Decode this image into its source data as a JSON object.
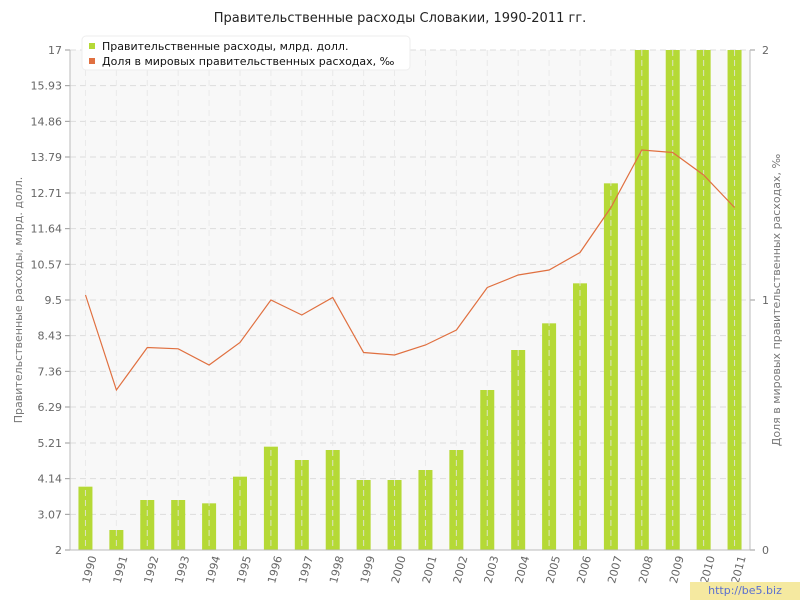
{
  "chart_data": {
    "type": "bar",
    "title": "Правительственные расходы Словакии, 1990-2011 гг.",
    "ylabel_left": "Правительственные расходы, млрд. долл.",
    "ylabel_right": "Доля в мировых правительственных расходах, ‰",
    "ylim_left": [
      2,
      17
    ],
    "ylim_right": [
      0,
      2
    ],
    "left_ticks": [
      "2",
      "3.07",
      "4.14",
      "5.21",
      "6.29",
      "7.36",
      "8.43",
      "9.5",
      "10.57",
      "11.64",
      "12.71",
      "13.79",
      "14.86",
      "15.93",
      "17"
    ],
    "right_ticks": [
      "0",
      "1",
      "2"
    ],
    "categories": [
      "1990",
      "1991",
      "1992",
      "1993",
      "1994",
      "1995",
      "1996",
      "1997",
      "1998",
      "1999",
      "2000",
      "2001",
      "2002",
      "2003",
      "2004",
      "2005",
      "2006",
      "2007",
      "2008",
      "2009",
      "2010",
      "2011"
    ],
    "series": [
      {
        "name": "Правительственные расходы, млрд. долл.",
        "type": "bar",
        "axis": "left",
        "color": "#b5d936",
        "values": [
          3.9,
          2.6,
          3.5,
          3.5,
          3.4,
          4.2,
          5.1,
          4.7,
          5.0,
          4.1,
          4.1,
          4.4,
          5.0,
          6.8,
          8.0,
          8.8,
          10.0,
          13.0,
          17,
          17,
          17,
          17
        ]
      },
      {
        "name": "Доля в мировых правительственных расходах, ‰",
        "type": "line",
        "axis": "right",
        "color": "#e07040",
        "values": [
          1.02,
          0.64,
          0.81,
          0.805,
          0.74,
          0.83,
          1.0,
          0.94,
          1.01,
          0.79,
          0.78,
          0.82,
          0.88,
          1.05,
          1.1,
          1.12,
          1.19,
          1.37,
          1.6,
          1.59,
          1.5,
          1.37
        ]
      }
    ],
    "grid": true,
    "legend_position": "top-left"
  },
  "watermark": "http://be5.biz"
}
